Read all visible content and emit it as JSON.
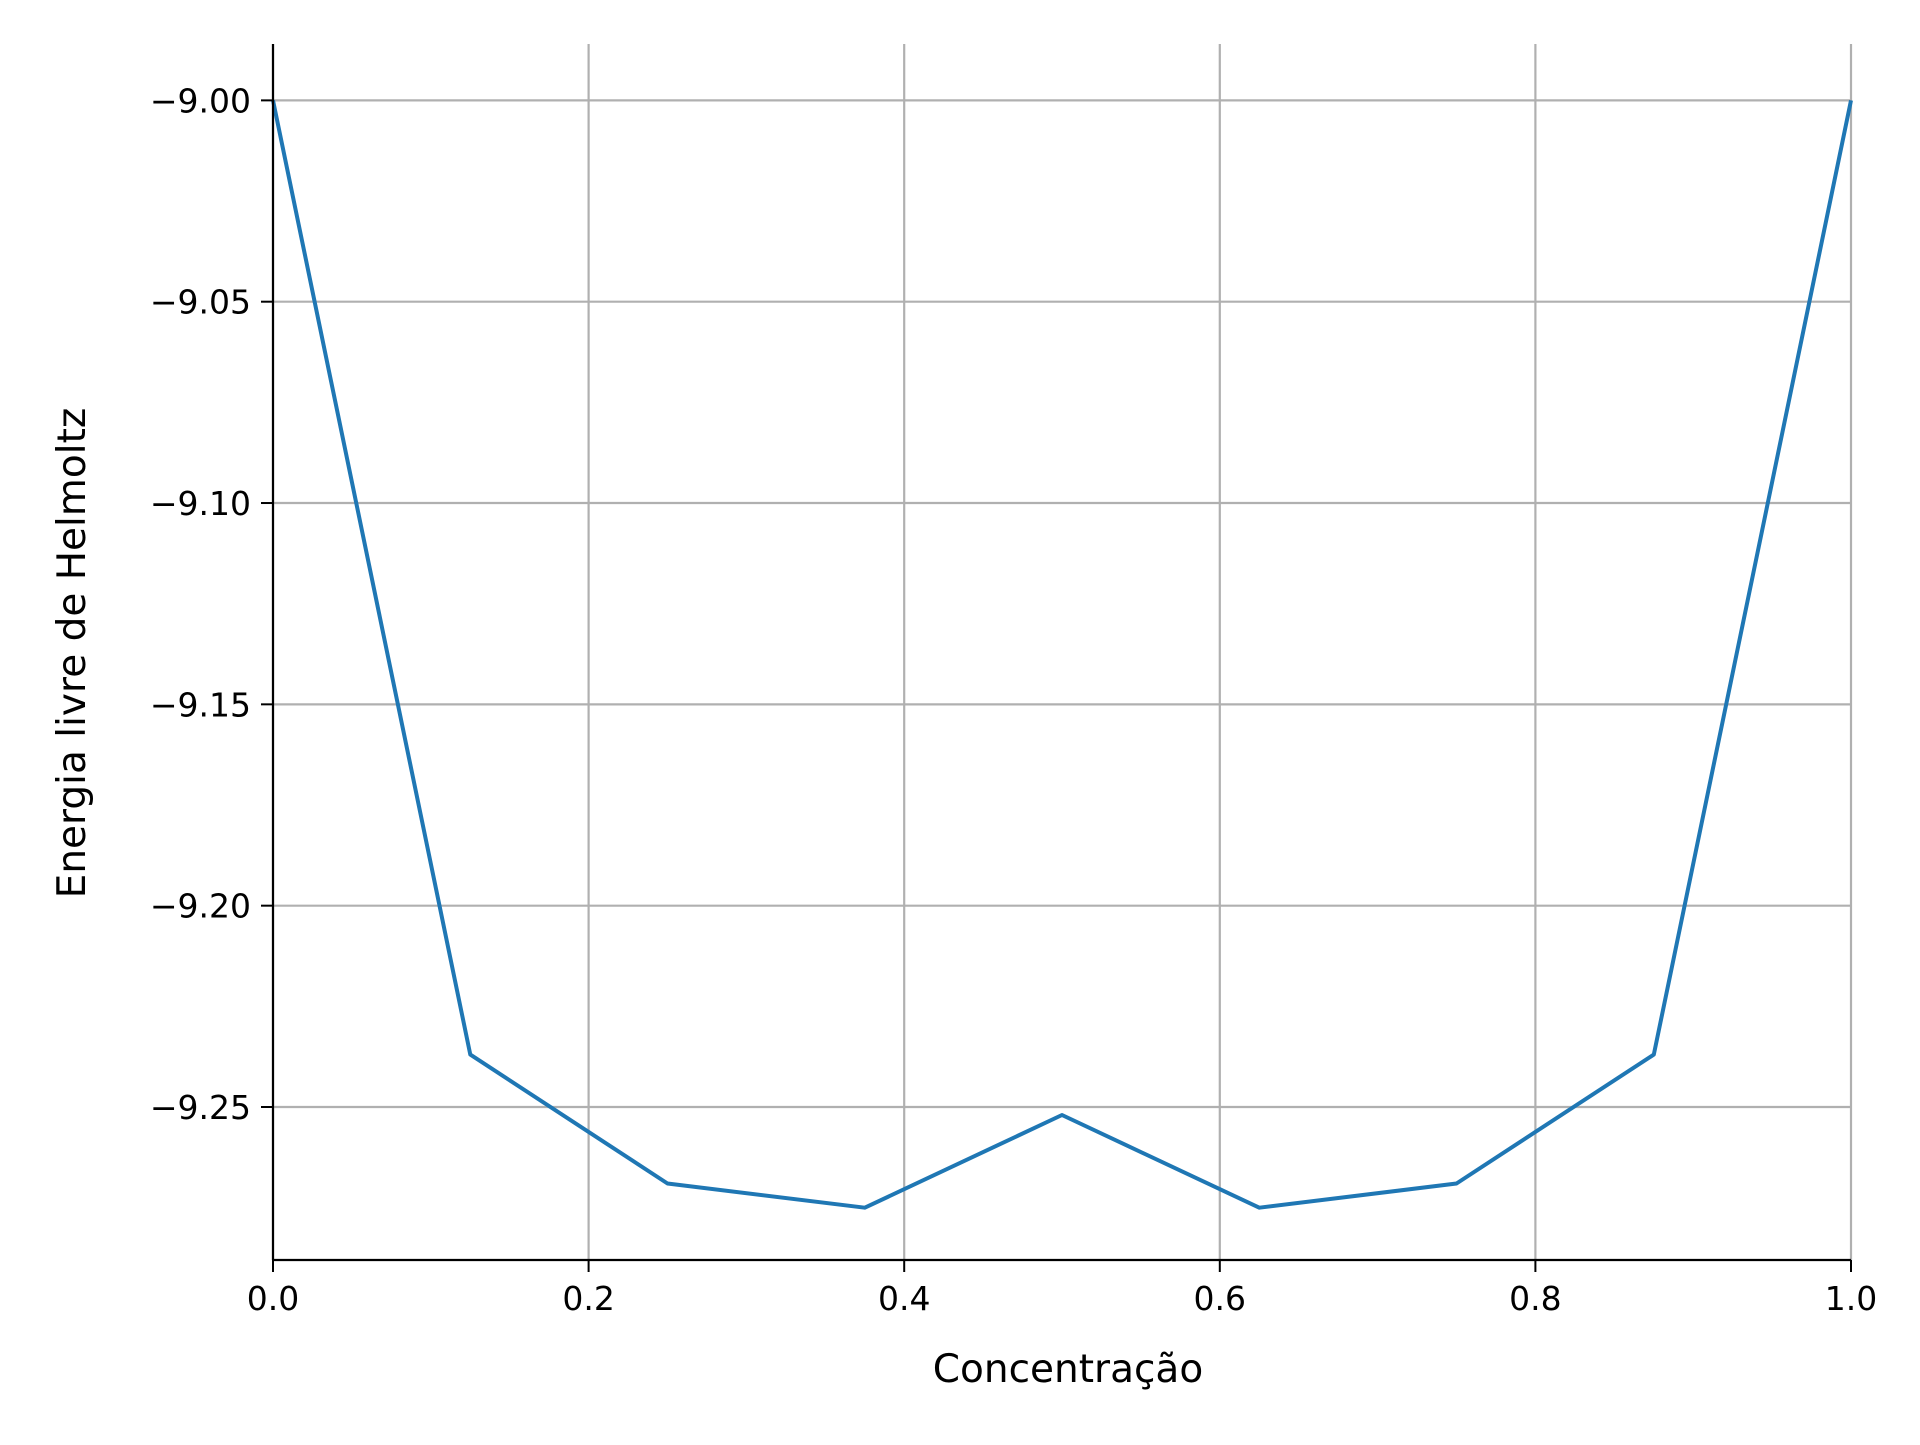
{
  "chart_data": {
    "type": "line",
    "title": "",
    "xlabel": "Concentração",
    "ylabel": "Energia livre de Helmoltz",
    "xlim": [
      0.0,
      1.0
    ],
    "ylim": [
      -9.288,
      -8.986
    ],
    "x_ticks": [
      0.0,
      0.2,
      0.4,
      0.6,
      0.8,
      1.0
    ],
    "x_tick_labels": [
      "0.0",
      "0.2",
      "0.4",
      "0.6",
      "0.8",
      "1.0"
    ],
    "y_ticks": [
      -9.0,
      -9.05,
      -9.1,
      -9.15,
      -9.2,
      -9.25
    ],
    "y_tick_labels": [
      "−9.00",
      "−9.05",
      "−9.10",
      "−9.15",
      "−9.20",
      "−9.25"
    ],
    "grid": true,
    "legend": "none",
    "series": [
      {
        "color": "#1f77b4",
        "x": [
          0.0,
          0.125,
          0.25,
          0.375,
          0.5,
          0.625,
          0.75,
          0.875,
          1.0
        ],
        "y": [
          -9.0,
          -9.237,
          -9.269,
          -9.275,
          -9.252,
          -9.275,
          -9.269,
          -9.237,
          -9.0
        ]
      }
    ]
  }
}
